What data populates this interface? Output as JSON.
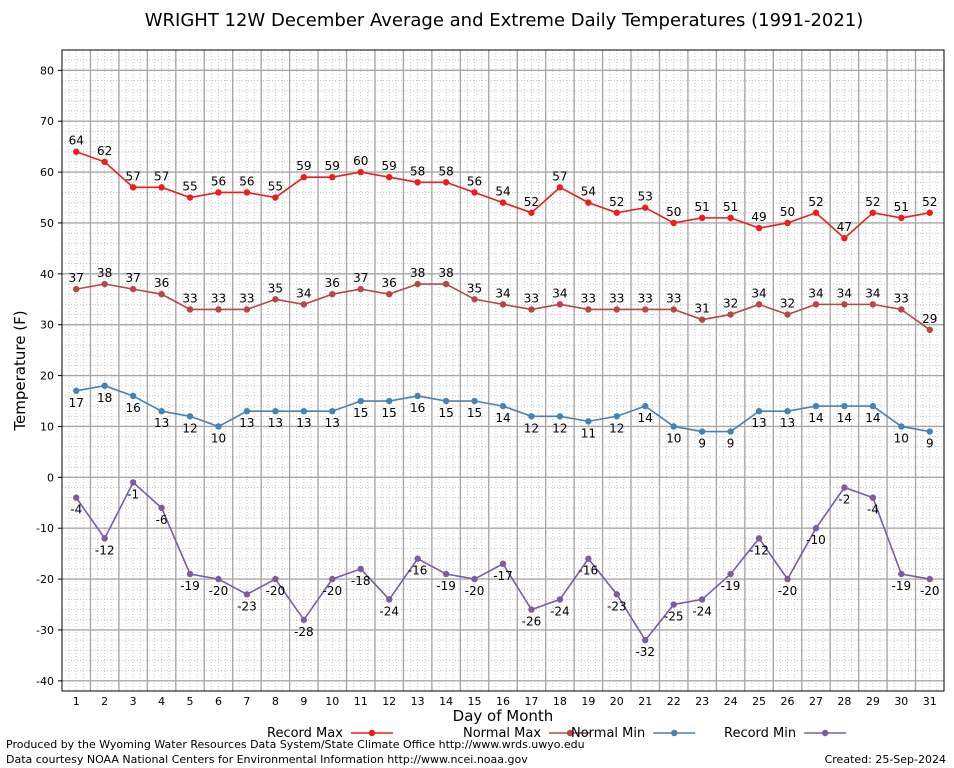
{
  "chart_data": {
    "type": "line",
    "title": "WRIGHT 12W December Average and Extreme Daily Temperatures (1991-2021)",
    "xlabel": "Day of Month",
    "ylabel": "Temperature (F)",
    "ylim": [
      -42,
      84
    ],
    "yticks": [
      -40,
      -30,
      -20,
      -10,
      0,
      10,
      20,
      30,
      40,
      50,
      60,
      70,
      80
    ],
    "x": [
      1,
      2,
      3,
      4,
      5,
      6,
      7,
      8,
      9,
      10,
      11,
      12,
      13,
      14,
      15,
      16,
      17,
      18,
      19,
      20,
      21,
      22,
      23,
      24,
      25,
      26,
      27,
      28,
      29,
      30,
      31
    ],
    "grid": true,
    "legend_placement": "bottom",
    "series": [
      {
        "name": "Record Max",
        "color": "#ee1c1c",
        "label_pos": "above",
        "values": [
          64,
          62,
          57,
          57,
          55,
          56,
          56,
          55,
          59,
          59,
          60,
          59,
          58,
          58,
          56,
          54,
          52,
          57,
          54,
          52,
          53,
          50,
          51,
          51,
          49,
          50,
          52,
          47,
          52,
          51,
          52
        ]
      },
      {
        "name": "Normal Max",
        "color": "#b94646",
        "label_pos": "above",
        "values": [
          37,
          38,
          37,
          36,
          33,
          33,
          33,
          35,
          34,
          36,
          37,
          36,
          38,
          38,
          35,
          34,
          33,
          34,
          33,
          33,
          33,
          33,
          31,
          32,
          34,
          32,
          34,
          34,
          34,
          33,
          29
        ]
      },
      {
        "name": "Normal Min",
        "color": "#4682b4",
        "label_pos": "below",
        "values": [
          17,
          18,
          16,
          13,
          12,
          10,
          13,
          13,
          13,
          13,
          15,
          15,
          16,
          15,
          15,
          14,
          12,
          12,
          11,
          12,
          14,
          10,
          9,
          9,
          13,
          13,
          14,
          14,
          14,
          10,
          9
        ]
      },
      {
        "name": "Record Min",
        "color": "#7b5ba6",
        "label_pos": "below",
        "values": [
          -4,
          -12,
          -1,
          -6,
          -19,
          -20,
          -23,
          -20,
          -28,
          -20,
          -18,
          -24,
          -16,
          -19,
          -20,
          -17,
          -26,
          -24,
          -16,
          -23,
          -32,
          -25,
          -24,
          -19,
          -12,
          -20,
          -10,
          -2,
          -4,
          -19,
          -20
        ]
      }
    ]
  },
  "footer": {
    "produced_by": "Produced by the Wyoming Water Resources Data System/State Climate Office http://www.wrds.uwyo.edu",
    "data_courtesy": "Data courtesy NOAA National Centers for Environmental Information http://www.ncei.noaa.gov",
    "created": "Created:  25-Sep-2024"
  }
}
